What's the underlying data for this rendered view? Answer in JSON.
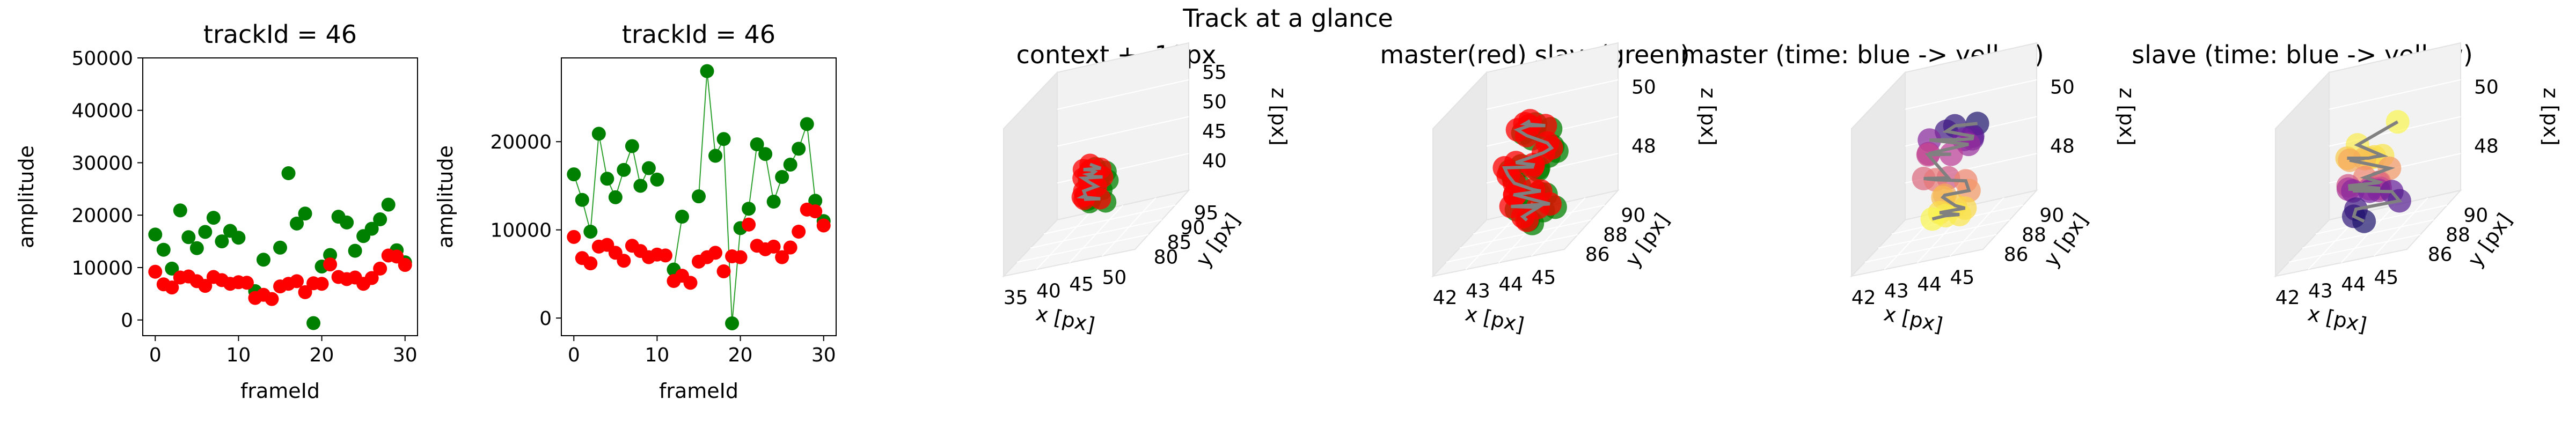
{
  "suptitle": "Track at a glance",
  "colors": {
    "master": "#ff0000",
    "slave": "#008000",
    "link": "#808080",
    "slave_line": "#2ca02c"
  },
  "chart_data": [
    {
      "type": "scatter",
      "title": "trackId = 46",
      "xlabel": "frameId",
      "ylabel": "amplitude",
      "xlim": [
        -1.5,
        31.5
      ],
      "ylim": [
        -3000,
        50000
      ],
      "xticks": [
        0,
        10,
        20,
        30
      ],
      "yticks": [
        0,
        10000,
        20000,
        30000,
        40000,
        50000
      ],
      "connect_slave": false,
      "series": [
        {
          "values": [
            9200,
            6800,
            6200,
            8100,
            8300,
            7400,
            6500,
            8200,
            7600,
            6900,
            7200,
            7100,
            4200,
            4800,
            4000,
            6400,
            6900,
            7400,
            5300,
            7000,
            6900,
            10600,
            8200,
            7800,
            8100,
            6900,
            8000,
            9800,
            12300,
            12100,
            10500
          ]
        },
        {
          "values": [
            16300,
            13400,
            9800,
            20900,
            15800,
            13700,
            16800,
            19500,
            15000,
            17000,
            15700,
            null,
            5500,
            11500,
            null,
            13800,
            28000,
            18400,
            20300,
            -600,
            10200,
            12400,
            19700,
            18600,
            13200,
            16000,
            17400,
            19200,
            22000,
            13300,
            11000
          ]
        }
      ]
    },
    {
      "type": "line",
      "title": "trackId = 46",
      "xlabel": "frameId",
      "ylabel": "amplitude",
      "xlim": [
        -1.5,
        31.5
      ],
      "ylim": [
        -2000,
        29500
      ],
      "xticks": [
        0,
        10,
        20,
        30
      ],
      "yticks": [
        0,
        10000,
        20000
      ],
      "connect_slave": true,
      "series": [
        {
          "values": [
            9200,
            6800,
            6200,
            8100,
            8300,
            7400,
            6500,
            8200,
            7600,
            6900,
            7200,
            7100,
            4200,
            4800,
            4000,
            6400,
            6900,
            7400,
            5300,
            7000,
            6900,
            10600,
            8200,
            7800,
            8100,
            6900,
            8000,
            9800,
            12300,
            12100,
            10500
          ]
        },
        {
          "values": [
            16300,
            13400,
            9800,
            20900,
            15800,
            13700,
            16800,
            19500,
            15000,
            17000,
            15700,
            null,
            5500,
            11500,
            null,
            13800,
            28000,
            18400,
            20300,
            -600,
            10200,
            12400,
            19700,
            18600,
            13200,
            16000,
            17400,
            19200,
            22000,
            13300,
            11000
          ]
        }
      ]
    }
  ],
  "panels3d": [
    {
      "title": "context +- 10px",
      "xlabel": "x [px]",
      "ylabel": "y [px]",
      "zlabel": "z [px]",
      "xticks": [
        "35",
        "40",
        "45",
        "50"
      ],
      "yticks": [
        "80",
        "85",
        "90",
        "95"
      ],
      "zticks": [
        "40",
        "45",
        "50",
        "55"
      ]
    },
    {
      "title": "master(red) slave(green)",
      "xlabel": "x [px]",
      "ylabel": "y [px]",
      "zlabel": "z [px]",
      "xticks": [
        "42",
        "43",
        "44",
        "45"
      ],
      "yticks": [
        "86",
        "88",
        "90"
      ],
      "zticks": [
        "48",
        "50"
      ]
    },
    {
      "title": "master (time: blue -> yellow)",
      "xlabel": "x [px]",
      "ylabel": "y [px]",
      "zlabel": "z [px]",
      "xticks": [
        "42",
        "43",
        "44",
        "45"
      ],
      "yticks": [
        "86",
        "88",
        "90"
      ],
      "zticks": [
        "48",
        "50"
      ]
    },
    {
      "title": "slave (time: blue -> yellow)",
      "xlabel": "x [px]",
      "ylabel": "y [px]",
      "zlabel": "z [px]",
      "xticks": [
        "42",
        "43",
        "44",
        "45"
      ],
      "yticks": [
        "86",
        "88",
        "90"
      ],
      "zticks": [
        "48",
        "50"
      ]
    }
  ]
}
